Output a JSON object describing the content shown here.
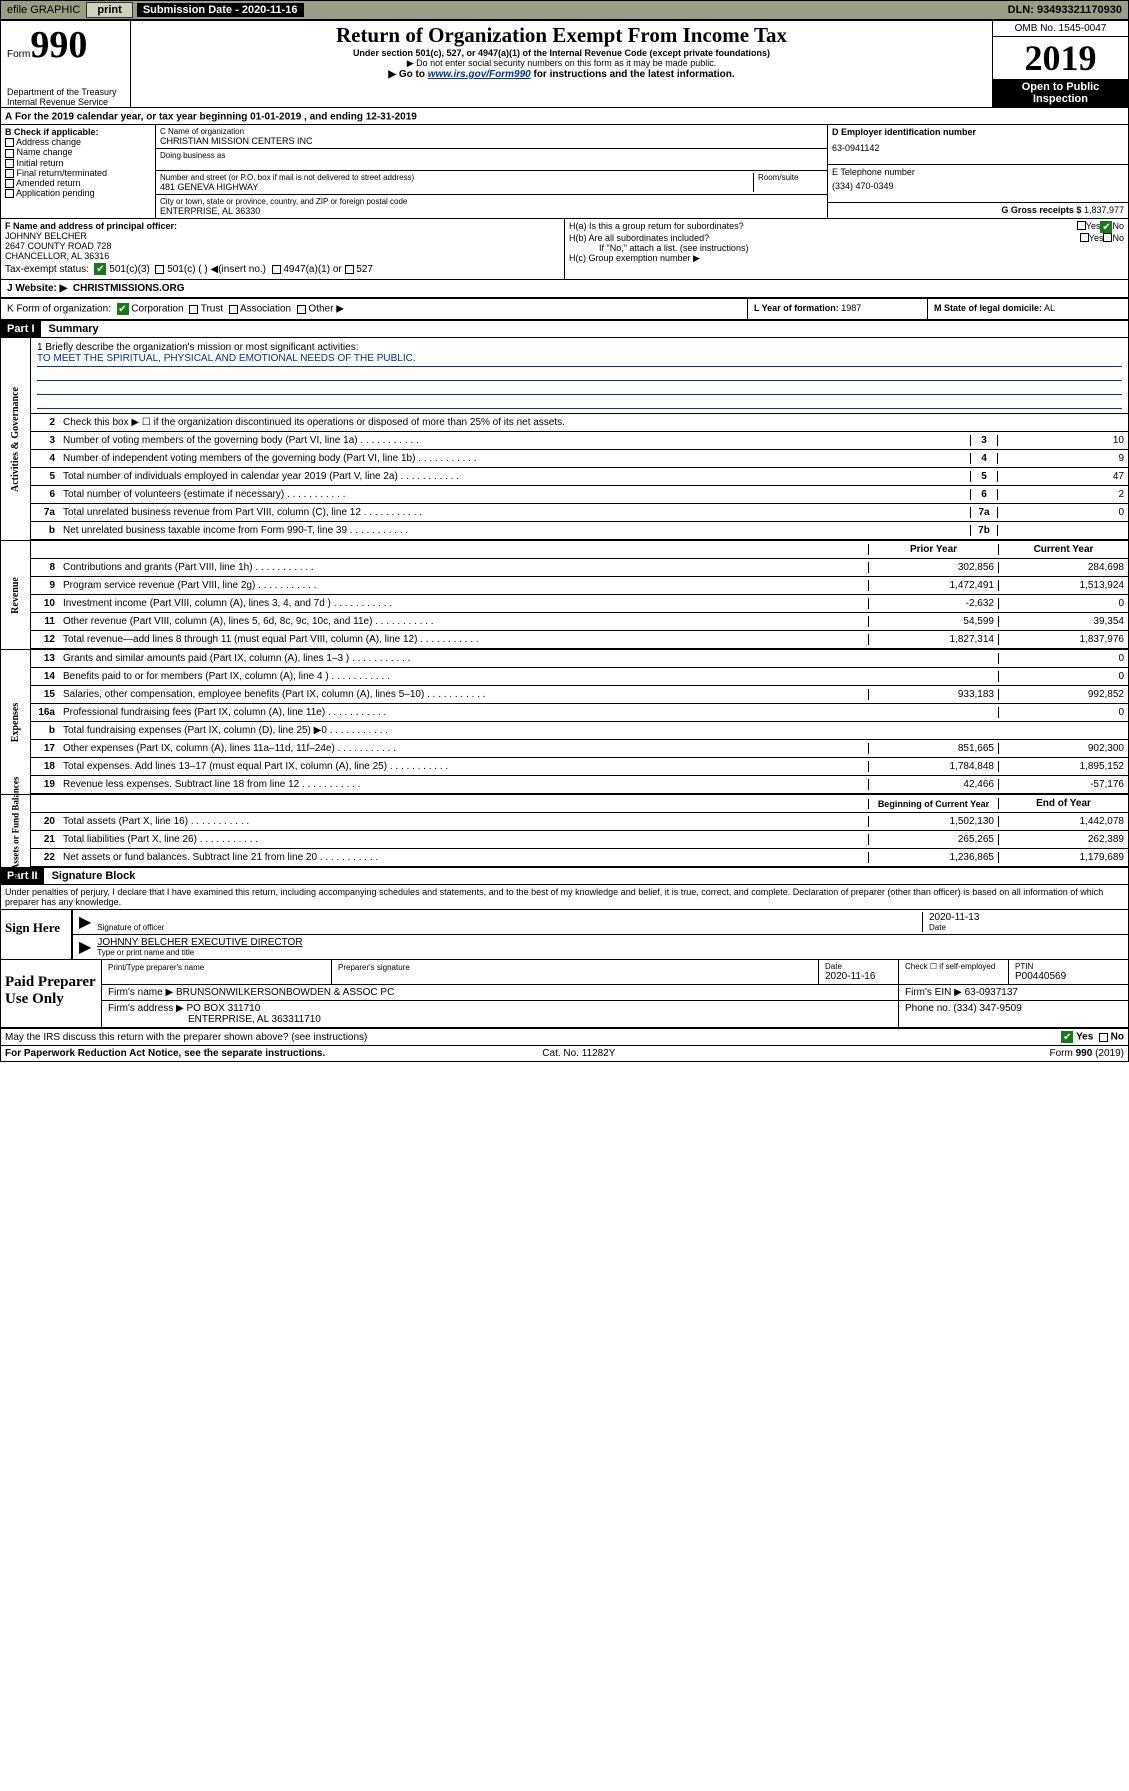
{
  "topbar": {
    "efile": "efile GRAPHIC",
    "print": "print",
    "sub_label": "Submission Date - 2020-11-16",
    "dln": "DLN: 93493321170930"
  },
  "header": {
    "form_word": "Form",
    "form_number": "990",
    "title": "Return of Organization Exempt From Income Tax",
    "subtitle": "Under section 501(c), 527, or 4947(a)(1) of the Internal Revenue Code (except private foundations)",
    "note1": "▶ Do not enter social security numbers on this form as it may be made public.",
    "note2_pre": "▶ Go to ",
    "note2_link": "www.irs.gov/Form990",
    "note2_post": " for instructions and the latest information.",
    "omb": "OMB No. 1545-0047",
    "year": "2019",
    "public": "Open to Public Inspection",
    "dept": "Department of the Treasury\nInternal Revenue Service"
  },
  "sectionA": "For the 2019 calendar year, or tax year beginning 01-01-2019   , and ending 12-31-2019",
  "boxB": {
    "label": "B Check if applicable:",
    "opts": [
      "Address change",
      "Name change",
      "Initial return",
      "Final return/terminated",
      "Amended return",
      "Application pending"
    ]
  },
  "boxC": {
    "name_label": "C Name of organization",
    "name": "CHRISTIAN MISSION CENTERS INC",
    "dba_label": "Doing business as",
    "street_label": "Number and street (or P.O. box if mail is not delivered to street address)",
    "room_label": "Room/suite",
    "street": "481 GENEVA HIGHWAY",
    "city_label": "City or town, state or province, country, and ZIP or foreign postal code",
    "city": "ENTERPRISE, AL  36330"
  },
  "boxD": {
    "label": "D Employer identification number",
    "val": "63-0941142"
  },
  "boxE": {
    "label": "E Telephone number",
    "val": "(334) 470-0349"
  },
  "boxG": {
    "label": "G Gross receipts $",
    "val": "1,837,977"
  },
  "boxF": {
    "label": "F  Name and address of principal officer:",
    "name": "JOHNNY BELCHER",
    "addr1": "2647 COUNTY ROAD 728",
    "addr2": "CHANCELLOR, AL  36316"
  },
  "boxH": {
    "ha": "H(a)  Is this a group return for subordinates?",
    "hb": "H(b)  Are all subordinates included?",
    "hb_note": "If \"No,\" attach a list. (see instructions)",
    "hc": "H(c)  Group exemption number ▶",
    "yes": "Yes",
    "no": "No"
  },
  "taxExempt": {
    "label": "Tax-exempt status:",
    "c3": "501(c)(3)",
    "c": "501(c) (   ) ◀(insert no.)",
    "a1": "4947(a)(1) or",
    "s527": "527"
  },
  "website": {
    "label": "J  Website: ▶",
    "val": "CHRISTMISSIONS.ORG"
  },
  "boxK": {
    "label": "K Form of organization:",
    "corp": "Corporation",
    "trust": "Trust",
    "assoc": "Association",
    "other": "Other ▶"
  },
  "boxL": {
    "label": "L Year of formation:",
    "val": "1987"
  },
  "boxM": {
    "label": "M State of legal domicile:",
    "val": "AL"
  },
  "part1": {
    "tag": "Part I",
    "title": "Summary"
  },
  "mission": {
    "label": "1  Briefly describe the organization's mission or most significant activities:",
    "text": "TO MEET THE SPIRITUAL, PHYSICAL AND EMOTIONAL NEEDS OF THE PUBLIC."
  },
  "side_labels": {
    "gov": "Activities & Governance",
    "rev": "Revenue",
    "exp": "Expenses",
    "net": "Net Assets or Fund Balances"
  },
  "columns": {
    "prior": "Prior Year",
    "current": "Current Year",
    "begin": "Beginning of Current Year",
    "end": "End of Year"
  },
  "governance": [
    {
      "no": "2",
      "desc": "Check this box ▶ ☐  if the organization discontinued its operations or disposed of more than 25% of its net assets."
    },
    {
      "no": "3",
      "desc": "Number of voting members of the governing body (Part VI, line 1a)",
      "ref": "3",
      "val": "10"
    },
    {
      "no": "4",
      "desc": "Number of independent voting members of the governing body (Part VI, line 1b)",
      "ref": "4",
      "val": "9"
    },
    {
      "no": "5",
      "desc": "Total number of individuals employed in calendar year 2019 (Part V, line 2a)",
      "ref": "5",
      "val": "47"
    },
    {
      "no": "6",
      "desc": "Total number of volunteers (estimate if necessary)",
      "ref": "6",
      "val": "2"
    },
    {
      "no": "7a",
      "desc": "Total unrelated business revenue from Part VIII, column (C), line 12",
      "ref": "7a",
      "val": "0"
    },
    {
      "no": "b",
      "desc": "Net unrelated business taxable income from Form 990-T, line 39",
      "ref": "7b",
      "val": ""
    }
  ],
  "revenue": [
    {
      "no": "8",
      "desc": "Contributions and grants (Part VIII, line 1h)",
      "prior": "302,856",
      "curr": "284,698"
    },
    {
      "no": "9",
      "desc": "Program service revenue (Part VIII, line 2g)",
      "prior": "1,472,491",
      "curr": "1,513,924"
    },
    {
      "no": "10",
      "desc": "Investment income (Part VIII, column (A), lines 3, 4, and 7d )",
      "prior": "-2,632",
      "curr": "0"
    },
    {
      "no": "11",
      "desc": "Other revenue (Part VIII, column (A), lines 5, 6d, 8c, 9c, 10c, and 11e)",
      "prior": "54,599",
      "curr": "39,354"
    },
    {
      "no": "12",
      "desc": "Total revenue—add lines 8 through 11 (must equal Part VIII, column (A), line 12)",
      "prior": "1,827,314",
      "curr": "1,837,976"
    }
  ],
  "expenses": [
    {
      "no": "13",
      "desc": "Grants and similar amounts paid (Part IX, column (A), lines 1–3 )",
      "prior": "",
      "curr": "0"
    },
    {
      "no": "14",
      "desc": "Benefits paid to or for members (Part IX, column (A), line 4 )",
      "prior": "",
      "curr": "0"
    },
    {
      "no": "15",
      "desc": "Salaries, other compensation, employee benefits (Part IX, column (A), lines 5–10)",
      "prior": "933,183",
      "curr": "992,852"
    },
    {
      "no": "16a",
      "desc": "Professional fundraising fees (Part IX, column (A), line 11e)",
      "prior": "",
      "curr": "0"
    },
    {
      "no": "b",
      "desc": "Total fundraising expenses (Part IX, column (D), line 25) ▶0",
      "prior": "SHADE",
      "curr": "SHADE"
    },
    {
      "no": "17",
      "desc": "Other expenses (Part IX, column (A), lines 11a–11d, 11f–24e)",
      "prior": "851,665",
      "curr": "902,300"
    },
    {
      "no": "18",
      "desc": "Total expenses. Add lines 13–17 (must equal Part IX, column (A), line 25)",
      "prior": "1,784,848",
      "curr": "1,895,152"
    },
    {
      "no": "19",
      "desc": "Revenue less expenses. Subtract line 18 from line 12",
      "prior": "42,466",
      "curr": "-57,176"
    }
  ],
  "netassets": [
    {
      "no": "20",
      "desc": "Total assets (Part X, line 16)",
      "prior": "1,502,130",
      "curr": "1,442,078"
    },
    {
      "no": "21",
      "desc": "Total liabilities (Part X, line 26)",
      "prior": "265,265",
      "curr": "262,389"
    },
    {
      "no": "22",
      "desc": "Net assets or fund balances. Subtract line 21 from line 20",
      "prior": "1,236,865",
      "curr": "1,179,689"
    }
  ],
  "part2": {
    "tag": "Part II",
    "title": "Signature Block"
  },
  "perjury": "Under penalties of perjury, I declare that I have examined this return, including accompanying schedules and statements, and to the best of my knowledge and belief, it is true, correct, and complete. Declaration of preparer (other than officer) is based on all information of which preparer has any knowledge.",
  "sign": {
    "here": "Sign Here",
    "sig_label": "Signature of officer",
    "date": "2020-11-13",
    "date_label": "Date",
    "name": "JOHNNY BELCHER EXECUTIVE DIRECTOR",
    "name_label": "Type or print name and title"
  },
  "paid": {
    "label": "Paid Preparer Use Only",
    "prep_name_label": "Print/Type preparer's name",
    "prep_sig_label": "Preparer's signature",
    "date_label": "Date",
    "date": "2020-11-16",
    "check_label": "Check ☐ if self-employed",
    "ptin_label": "PTIN",
    "ptin": "P00440569",
    "firm_name_label": "Firm's name   ▶",
    "firm_name": "BRUNSONWILKERSONBOWDEN & ASSOC PC",
    "firm_ein_label": "Firm's EIN ▶",
    "firm_ein": "63-0937137",
    "firm_addr_label": "Firm's address ▶",
    "firm_addr1": "PO BOX 311710",
    "firm_addr2": "ENTERPRISE, AL  363311710",
    "phone_label": "Phone no.",
    "phone": "(334) 347-9509"
  },
  "discuss": "May the IRS discuss this return with the preparer shown above? (see instructions)",
  "footer": {
    "paperwork": "For Paperwork Reduction Act Notice, see the separate instructions.",
    "cat": "Cat. No. 11282Y",
    "form": "Form 990 (2019)"
  }
}
